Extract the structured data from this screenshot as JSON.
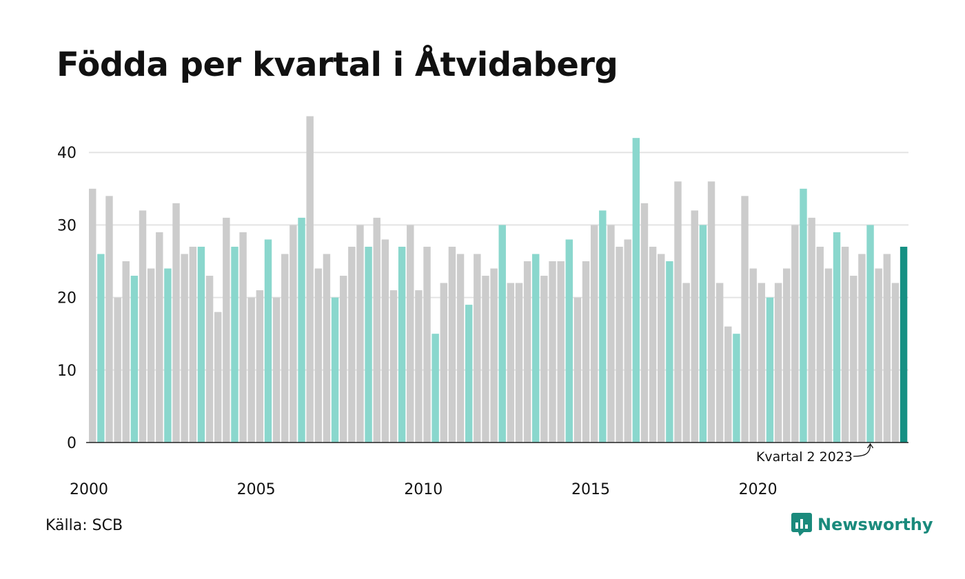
{
  "title": "Födda per kvartal i Åtvidaberg",
  "source": "Källa: SCB",
  "brand": "Newsworthy",
  "colors": {
    "bar_grey": "#cccccc",
    "bar_teal": "#8ad7cd",
    "bar_last": "#159083",
    "grid": "#e4e4e4",
    "brand": "#1a8a7c"
  },
  "chart_data": {
    "type": "bar",
    "title": "Födda per kvartal i Åtvidaberg",
    "xlabel": "",
    "ylabel": "",
    "ylim": [
      0,
      45
    ],
    "yticks": [
      "0",
      "10",
      "20",
      "30",
      "40"
    ],
    "xticks": [
      "2000",
      "2005",
      "2010",
      "2015",
      "2020"
    ],
    "highlight_quarter": 2,
    "annotation": "Kvartal 2 2023",
    "grid": true,
    "start_year": 2000,
    "values": [
      35,
      26,
      34,
      20,
      25,
      23,
      32,
      24,
      29,
      24,
      33,
      26,
      27,
      27,
      23,
      18,
      31,
      27,
      29,
      20,
      21,
      28,
      20,
      26,
      30,
      31,
      45,
      24,
      26,
      20,
      23,
      27,
      30,
      27,
      31,
      28,
      21,
      27,
      30,
      21,
      27,
      15,
      22,
      27,
      26,
      19,
      26,
      23,
      24,
      30,
      22,
      22,
      25,
      26,
      23,
      25,
      25,
      28,
      20,
      25,
      30,
      32,
      30,
      27,
      28,
      42,
      33,
      27,
      26,
      25,
      36,
      22,
      32,
      30,
      36,
      22,
      16,
      15,
      34,
      24,
      22,
      20,
      22,
      24,
      30,
      35,
      31,
      27,
      24,
      29,
      27,
      23,
      26,
      30,
      24,
      26,
      22,
      27
    ]
  }
}
